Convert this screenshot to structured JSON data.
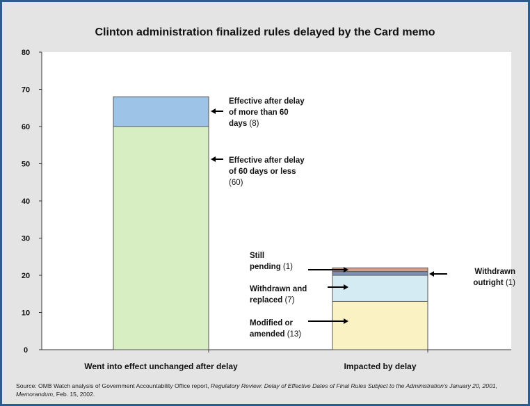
{
  "chart_data": {
    "type": "bar",
    "stacked": true,
    "title": "Clinton administration finalized rules delayed by the Card memo",
    "xlabel": "",
    "ylabel": "",
    "ylim": [
      0,
      80
    ],
    "yticks": [
      "0",
      "10",
      "20",
      "30",
      "40",
      "50",
      "60",
      "70",
      "80"
    ],
    "grid": false,
    "categories": [
      "Went into effect unchanged after delay",
      "Impacted by delay"
    ],
    "bars": [
      {
        "category": "Went into effect unchanged after delay",
        "segments": [
          {
            "value": 60,
            "color": "#d7eec2",
            "label_lines": [
              "Effective after delay",
              "of 60 days or less"
            ],
            "count": "(60)"
          },
          {
            "value": 8,
            "color": "#9dc3e6",
            "label_lines": [
              "Effective after delay",
              "of more than 60"
            ],
            "tail": "days",
            "count": "(8)"
          }
        ]
      },
      {
        "category": "Impacted by delay",
        "segments": [
          {
            "value": 13,
            "color": "#fbf2c4",
            "label_lines": [
              "Modified or"
            ],
            "tail": "amended",
            "count": "(13)"
          },
          {
            "value": 7,
            "color": "#d5ebf4",
            "label_lines": [
              "Withdrawn and"
            ],
            "tail": "replaced",
            "count": "(7)"
          },
          {
            "value": 1,
            "color": "#8090b8",
            "label_lines": [
              "Withdrawn"
            ],
            "tail": "outright",
            "count": "(1)"
          },
          {
            "value": 1,
            "color": "#d4a08c",
            "label_lines": [
              "Still"
            ],
            "tail": "pending",
            "count": "(1)"
          }
        ]
      }
    ]
  },
  "source": {
    "prefix": "Source: OMB Watch analysis of Government Accountability Office report,",
    "italic": "Regulatory Review: Delay of Effective Dates of Final Rules Subject to the Administration's January 20, 2001, Memorandum",
    "suffix": ", Feb. 15, 2002."
  }
}
